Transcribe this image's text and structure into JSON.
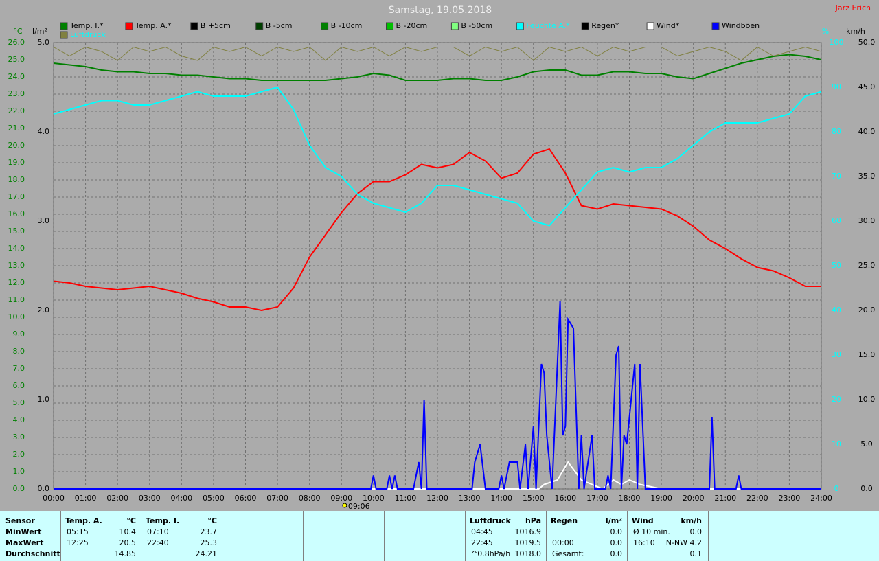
{
  "chart_data": {
    "type": "line",
    "title": "Samstag, 19.05.2018",
    "author": "Jarz Erich",
    "axis_labels": {
      "y": "°C",
      "y2": "l/m²",
      "y3": "%",
      "y4": "km/h"
    },
    "x": [
      0,
      0.5,
      1,
      1.5,
      2,
      2.5,
      3,
      3.5,
      4,
      4.5,
      5,
      5.5,
      6,
      6.5,
      7,
      7.5,
      8,
      8.5,
      9,
      9.5,
      10,
      10.5,
      11,
      11.5,
      12,
      12.5,
      13,
      13.5,
      14,
      14.5,
      15,
      15.5,
      16,
      16.5,
      17,
      17.5,
      18,
      18.5,
      19,
      19.5,
      20,
      20.5,
      21,
      21.5,
      22,
      22.5,
      23,
      23.5,
      24
    ],
    "xlim": [
      0,
      24
    ],
    "xticks": [
      {
        "value": 0,
        "label": "00:00"
      },
      {
        "value": 1,
        "label": "01:00"
      },
      {
        "value": 2,
        "label": "02:00"
      },
      {
        "value": 3,
        "label": "03:00"
      },
      {
        "value": 4,
        "label": "04:00"
      },
      {
        "value": 5,
        "label": "05:00"
      },
      {
        "value": 6,
        "label": "06:00"
      },
      {
        "value": 7,
        "label": "07:00"
      },
      {
        "value": 8,
        "label": "08:00"
      },
      {
        "value": 9,
        "label": "09:00"
      },
      {
        "value": 10,
        "label": "10:00"
      },
      {
        "value": 11,
        "label": "11:00"
      },
      {
        "value": 12,
        "label": "12:00"
      },
      {
        "value": 13,
        "label": "13:00"
      },
      {
        "value": 14,
        "label": "14:00"
      },
      {
        "value": 15,
        "label": "15:00"
      },
      {
        "value": 16,
        "label": "16:00"
      },
      {
        "value": 17,
        "label": "17:00"
      },
      {
        "value": 18,
        "label": "18:00"
      },
      {
        "value": 19,
        "label": "19:00"
      },
      {
        "value": 20,
        "label": "20:00"
      },
      {
        "value": 21,
        "label": "21:00"
      },
      {
        "value": 22,
        "label": "22:00"
      },
      {
        "value": 23,
        "label": "23:00"
      },
      {
        "value": 24,
        "label": "24:00"
      }
    ],
    "ylim": [
      0,
      26
    ],
    "yticks": [
      {
        "value": 0,
        "label": "0.0"
      },
      {
        "value": 1,
        "label": "1.0"
      },
      {
        "value": 2,
        "label": "2.0"
      },
      {
        "value": 3,
        "label": "3.0"
      },
      {
        "value": 4,
        "label": "4.0"
      },
      {
        "value": 5,
        "label": "5.0"
      },
      {
        "value": 6,
        "label": "6.0"
      },
      {
        "value": 7,
        "label": "7.0"
      },
      {
        "value": 8,
        "label": "8.0"
      },
      {
        "value": 9,
        "label": "9.0"
      },
      {
        "value": 10,
        "label": "10.0"
      },
      {
        "value": 11,
        "label": "11.0"
      },
      {
        "value": 12,
        "label": "12.0"
      },
      {
        "value": 13,
        "label": "13.0"
      },
      {
        "value": 14,
        "label": "14.0"
      },
      {
        "value": 15,
        "label": "15.0"
      },
      {
        "value": 16,
        "label": "16.0"
      },
      {
        "value": 17,
        "label": "17.0"
      },
      {
        "value": 18,
        "label": "18.0"
      },
      {
        "value": 19,
        "label": "19.0"
      },
      {
        "value": 20,
        "label": "20.0"
      },
      {
        "value": 21,
        "label": "21.0"
      },
      {
        "value": 22,
        "label": "22.0"
      },
      {
        "value": 23,
        "label": "23.0"
      },
      {
        "value": 24,
        "label": "24.0"
      },
      {
        "value": 25,
        "label": "25.0"
      },
      {
        "value": 26,
        "label": "26.0"
      }
    ],
    "y2lim": [
      0,
      5
    ],
    "y2ticks": [
      {
        "value": 0,
        "label": "0.0"
      },
      {
        "value": 1,
        "label": "1.0"
      },
      {
        "value": 2,
        "label": "2.0"
      },
      {
        "value": 3,
        "label": "3.0"
      },
      {
        "value": 4,
        "label": "4.0"
      },
      {
        "value": 5,
        "label": "5.0"
      }
    ],
    "y3lim": [
      0,
      100
    ],
    "y3ticks": [
      0,
      10,
      20,
      30,
      40,
      50,
      60,
      70,
      80,
      90,
      100
    ],
    "y4lim": [
      0,
      50
    ],
    "y4ticks": [
      {
        "value": 0,
        "label": "0.0"
      },
      {
        "value": 5,
        "label": "5.0"
      },
      {
        "value": 10,
        "label": "10.0"
      },
      {
        "value": 15,
        "label": "15.0"
      },
      {
        "value": 20,
        "label": "20.0"
      },
      {
        "value": 25,
        "label": "25.0"
      },
      {
        "value": 30,
        "label": "30.0"
      },
      {
        "value": 35,
        "label": "35.0"
      },
      {
        "value": 40,
        "label": "40.0"
      },
      {
        "value": 45,
        "label": "45.0"
      },
      {
        "value": 50,
        "label": "50.0"
      }
    ],
    "grid": true,
    "annotations": [
      {
        "x": 9.1,
        "label": "09:06"
      }
    ],
    "series": [
      {
        "name": "Temp. I.*",
        "color": "#008000",
        "axis": "y",
        "values": [
          24.8,
          24.7,
          24.6,
          24.4,
          24.3,
          24.3,
          24.2,
          24.2,
          24.1,
          24.1,
          24.0,
          23.9,
          23.9,
          23.8,
          23.8,
          23.8,
          23.8,
          23.8,
          23.9,
          24.0,
          24.2,
          24.1,
          23.8,
          23.8,
          23.8,
          23.9,
          23.9,
          23.8,
          23.8,
          24.0,
          24.3,
          24.4,
          24.4,
          24.1,
          24.1,
          24.3,
          24.3,
          24.2,
          24.2,
          24.0,
          23.9,
          24.2,
          24.5,
          24.8,
          25.0,
          25.2,
          25.3,
          25.2,
          25.0
        ]
      },
      {
        "name": "Temp. A.*",
        "color": "#ff0000",
        "axis": "y",
        "values": [
          12.1,
          12.0,
          11.8,
          11.7,
          11.6,
          11.7,
          11.8,
          11.6,
          11.4,
          11.1,
          10.9,
          10.6,
          10.6,
          10.4,
          10.6,
          11.7,
          13.5,
          14.8,
          16.1,
          17.2,
          17.9,
          17.9,
          18.3,
          18.9,
          18.7,
          18.9,
          19.6,
          19.1,
          18.1,
          18.4,
          19.5,
          19.8,
          18.4,
          16.5,
          16.3,
          16.6,
          16.5,
          16.4,
          16.3,
          15.9,
          15.3,
          14.5,
          14.0,
          13.4,
          12.9,
          12.7,
          12.3,
          11.8,
          11.8
        ]
      },
      {
        "name": "B +5cm",
        "color": "#000000"
      },
      {
        "name": "B -5cm",
        "color": "#004000"
      },
      {
        "name": "B -10cm",
        "color": "#008000"
      },
      {
        "name": "B -20cm",
        "color": "#00c000"
      },
      {
        "name": "B -50cm",
        "color": "#80ff80"
      },
      {
        "name": "Feuchte A.*",
        "color": "#00ffff",
        "axis": "y3",
        "values": [
          84,
          85,
          86,
          87,
          87,
          86,
          86,
          87,
          88,
          89,
          88,
          88,
          88,
          89,
          90,
          85,
          77,
          72,
          70,
          66,
          64,
          63,
          62,
          64,
          68,
          68,
          67,
          66,
          65,
          64,
          60,
          59,
          63,
          67,
          71,
          72,
          71,
          72,
          72,
          74,
          77,
          80,
          82,
          82,
          82,
          83,
          84,
          88,
          89
        ]
      },
      {
        "name": "Regen*",
        "color": "#000000"
      },
      {
        "name": "Wind*",
        "color": "#ffffff",
        "axis": "y4",
        "x": [
          0,
          15.167,
          15.333,
          15.75,
          16.083,
          16.5,
          17.167,
          17.5,
          17.75,
          18,
          18.333,
          19,
          24
        ],
        "values": [
          0,
          0,
          0.5,
          1,
          3,
          1,
          0,
          1,
          0.5,
          1,
          0.5,
          0,
          0
        ]
      },
      {
        "name": "Windböen",
        "color": "#0000ff",
        "axis": "y4",
        "x": [
          0,
          9.917,
          10,
          10.083,
          10.417,
          10.5,
          10.583,
          10.667,
          10.75,
          11.25,
          11.417,
          11.5,
          11.583,
          11.667,
          13.083,
          13.167,
          13.333,
          13.5,
          13.917,
          14,
          14.083,
          14.25,
          14.5,
          14.583,
          14.75,
          14.833,
          15,
          15.083,
          15.25,
          15.333,
          15.417,
          15.583,
          15.833,
          15.917,
          16,
          16.083,
          16.25,
          16.417,
          16.5,
          16.583,
          16.833,
          16.917,
          17.25,
          17.333,
          17.417,
          17.583,
          17.667,
          17.75,
          17.833,
          17.917,
          18.167,
          18.25,
          18.333,
          18.5,
          20.5,
          20.583,
          20.667,
          21.333,
          21.417,
          21.5,
          24
        ],
        "values": [
          0,
          0,
          1.5,
          0,
          0,
          1.5,
          0,
          1.5,
          0,
          0,
          3,
          0,
          10,
          0,
          0,
          3,
          5,
          0,
          0,
          1.5,
          0,
          3,
          3,
          0,
          5,
          0,
          7,
          0,
          14,
          13,
          6,
          0,
          21,
          6,
          7,
          19,
          18,
          0,
          6,
          0,
          6,
          0,
          0,
          1.5,
          0,
          15,
          16,
          0,
          6,
          5,
          14,
          0,
          14,
          0,
          0,
          8,
          0,
          0,
          1.5,
          0,
          0
        ]
      },
      {
        "name": "Luftdruck",
        "color": "#808040",
        "axis": "y3",
        "values": [
          99,
          97,
          99,
          98,
          96,
          99,
          98,
          99,
          97,
          96,
          99,
          98,
          99,
          97,
          99,
          98,
          99,
          96,
          99,
          98,
          99,
          97,
          99,
          98,
          99,
          99,
          97,
          99,
          98,
          99,
          96,
          99,
          98,
          99,
          97,
          99,
          98,
          99,
          99,
          97,
          98,
          99,
          98,
          96,
          99,
          97,
          98,
          99,
          98
        ]
      }
    ]
  },
  "table": {
    "row_labels": [
      "Sensor",
      "MinWert",
      "MaxWert",
      "Durchschnitt"
    ],
    "columns": [
      {
        "header": "Temp. A.",
        "unit": "°C",
        "rows": [
          [
            "05:15",
            "10.4"
          ],
          [
            "12:25",
            "20.5"
          ],
          [
            null,
            "14.85"
          ]
        ]
      },
      {
        "header": "Temp. I.",
        "unit": "°C",
        "rows": [
          [
            "07:10",
            "23.7"
          ],
          [
            "22:40",
            "25.3"
          ],
          [
            null,
            "24.21"
          ]
        ]
      },
      {
        "header": "Luftdruck",
        "unit": "hPa",
        "rows": [
          [
            "04:45",
            "1016.9"
          ],
          [
            "22:45",
            "1019.5"
          ],
          [
            "^0.8hPa/h",
            "1018.0"
          ]
        ]
      },
      {
        "header": "Regen",
        "unit": "l/m²",
        "rows": [
          [
            null,
            "0.0"
          ],
          [
            "00:00",
            "0.0"
          ],
          [
            "Gesamt:",
            "0.0"
          ]
        ]
      },
      {
        "header": "Wind",
        "unit": "km/h",
        "rows": [
          [
            "Ø 10 min.",
            "0.0"
          ],
          [
            "16:10",
            "N-NW 4.2"
          ],
          [
            null,
            "0.1"
          ]
        ]
      }
    ]
  }
}
